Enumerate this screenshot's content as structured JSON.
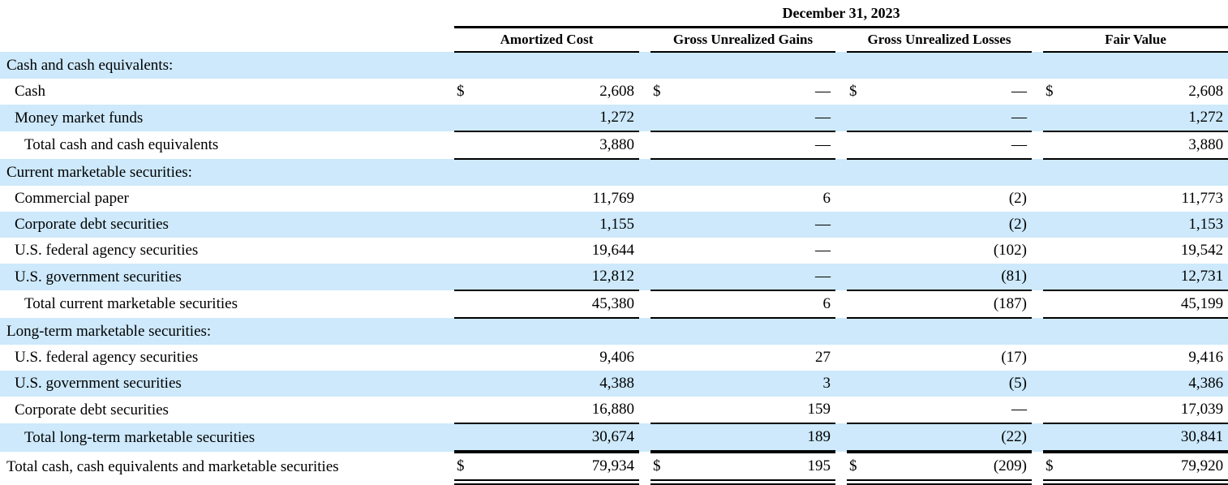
{
  "table": {
    "period_header": "December 31, 2023",
    "currency_symbol": "$",
    "columns": [
      "Amortized Cost",
      "Gross Unrealized Gains",
      "Gross Unrealized Losses",
      "Fair Value"
    ],
    "rows": [
      {
        "label": "Cash and cash equivalents:",
        "indent": 0,
        "shade": true,
        "dollar": false,
        "values": [
          "",
          "",
          "",
          ""
        ],
        "border": "none"
      },
      {
        "label": "Cash",
        "indent": 1,
        "shade": false,
        "dollar": true,
        "values": [
          "2,608",
          "—",
          "—",
          "2,608"
        ],
        "border": "none"
      },
      {
        "label": "Money market funds",
        "indent": 1,
        "shade": true,
        "dollar": false,
        "values": [
          "1,272",
          "—",
          "—",
          "1,272"
        ],
        "border": "single"
      },
      {
        "label": "Total cash and cash equivalents",
        "indent": 2,
        "shade": false,
        "dollar": false,
        "values": [
          "3,880",
          "—",
          "—",
          "3,880"
        ],
        "border": "single"
      },
      {
        "label": "Current marketable securities:",
        "indent": 0,
        "shade": true,
        "dollar": false,
        "values": [
          "",
          "",
          "",
          ""
        ],
        "border": "none"
      },
      {
        "label": "Commercial paper",
        "indent": 1,
        "shade": false,
        "dollar": false,
        "values": [
          "11,769",
          "6",
          "(2)",
          "11,773"
        ],
        "border": "none"
      },
      {
        "label": "Corporate debt securities",
        "indent": 1,
        "shade": true,
        "dollar": false,
        "values": [
          "1,155",
          "—",
          "(2)",
          "1,153"
        ],
        "border": "none"
      },
      {
        "label": "U.S. federal agency securities",
        "indent": 1,
        "shade": false,
        "dollar": false,
        "values": [
          "19,644",
          "—",
          "(102)",
          "19,542"
        ],
        "border": "none"
      },
      {
        "label": "U.S. government securities",
        "indent": 1,
        "shade": true,
        "dollar": false,
        "values": [
          "12,812",
          "—",
          "(81)",
          "12,731"
        ],
        "border": "single"
      },
      {
        "label": "Total current marketable securities",
        "indent": 2,
        "shade": false,
        "dollar": false,
        "values": [
          "45,380",
          "6",
          "(187)",
          "45,199"
        ],
        "border": "single"
      },
      {
        "label": "Long-term marketable securities:",
        "indent": 0,
        "shade": true,
        "dollar": false,
        "values": [
          "",
          "",
          "",
          ""
        ],
        "border": "none"
      },
      {
        "label": "U.S. federal agency securities",
        "indent": 1,
        "shade": false,
        "dollar": false,
        "values": [
          "9,406",
          "27",
          "(17)",
          "9,416"
        ],
        "border": "none"
      },
      {
        "label": "U.S. government securities",
        "indent": 1,
        "shade": true,
        "dollar": false,
        "values": [
          "4,388",
          "3",
          "(5)",
          "4,386"
        ],
        "border": "none"
      },
      {
        "label": "Corporate debt securities",
        "indent": 1,
        "shade": false,
        "dollar": false,
        "values": [
          "16,880",
          "159",
          "—",
          "17,039"
        ],
        "border": "single"
      },
      {
        "label": "Total long-term marketable securities",
        "indent": 2,
        "shade": true,
        "dollar": false,
        "values": [
          "30,674",
          "189",
          "(22)",
          "30,841"
        ],
        "border": "thick"
      },
      {
        "label": "Total cash, cash equivalents and marketable securities",
        "indent": 0,
        "shade": false,
        "dollar": true,
        "values": [
          "79,934",
          "195",
          "(209)",
          "79,920"
        ],
        "border": "double"
      }
    ]
  },
  "colors": {
    "row_stripe": "#cde9fb",
    "text": "#000000",
    "rule": "#000000"
  }
}
